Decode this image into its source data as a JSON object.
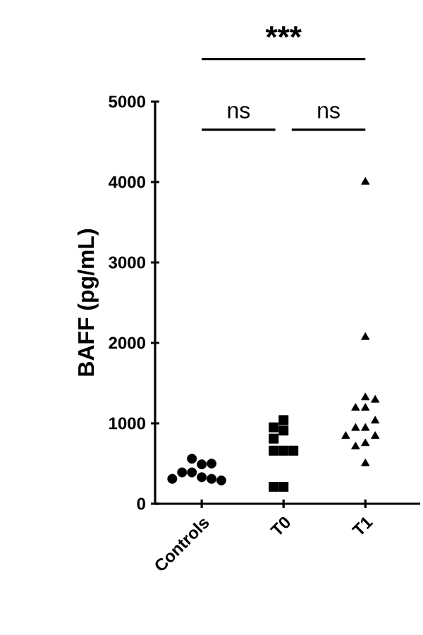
{
  "chart_data": {
    "type": "scatter",
    "ylabel": "BAFF (pg/mL)",
    "categories": [
      "Controls",
      "T0",
      "T1"
    ],
    "series": [
      {
        "color": "#000000",
        "marker": "circle",
        "x": [
          "Controls",
          "Controls",
          "Controls",
          "Controls",
          "Controls",
          "Controls",
          "Controls",
          "Controls",
          "Controls"
        ],
        "values": [
          330,
          390,
          490,
          310,
          560,
          390,
          500,
          290,
          310
        ]
      },
      {
        "color": "#000000",
        "marker": "square",
        "x": [
          "T0",
          "T0",
          "T0",
          "T0",
          "T0",
          "T0",
          "T0",
          "T0",
          "T0"
        ],
        "values": [
          910,
          1040,
          660,
          660,
          660,
          950,
          810,
          210,
          210
        ]
      },
      {
        "color": "#000000",
        "marker": "triangle",
        "x": [
          "T1",
          "T1",
          "T1",
          "T1",
          "T1",
          "T1",
          "T1",
          "T1",
          "T1",
          "T1",
          "T1",
          "T1",
          "T1",
          "T1"
        ],
        "values": [
          4000,
          2070,
          1320,
          1190,
          1190,
          1290,
          940,
          940,
          1030,
          840,
          840,
          750,
          710,
          500
        ]
      }
    ],
    "ylim": [
      0,
      5000
    ],
    "yticks": [
      0,
      1000,
      2000,
      3000,
      4000,
      5000
    ],
    "grid": false,
    "annotations": [
      "***",
      "ns",
      "ns"
    ]
  }
}
